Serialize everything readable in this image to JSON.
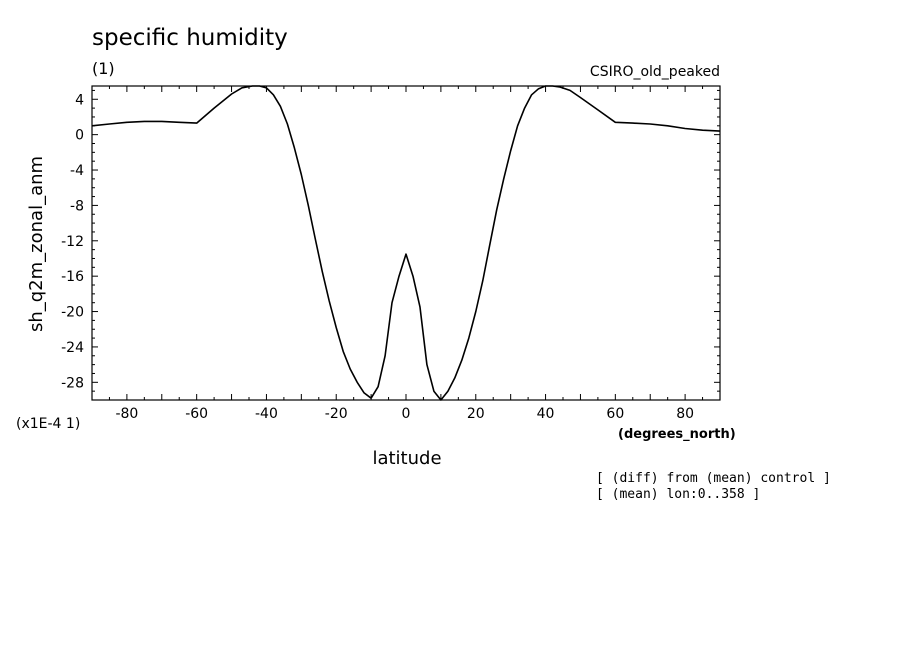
{
  "chart_data": {
    "type": "line",
    "title": "specific humidity",
    "subtitle": "(1)",
    "source_label": "CSIRO_old_peaked",
    "xlabel": "latitude",
    "x_units": "(degrees_north)",
    "ylabel": "sh_q2m_zonal_anm",
    "y_scale_label": "(x1E-4 1)",
    "xlim": [
      -90,
      90
    ],
    "ylim": [
      -30,
      5.5
    ],
    "x_ticks": [
      -80,
      -60,
      -40,
      -20,
      0,
      20,
      40,
      60,
      80
    ],
    "y_ticks": [
      4,
      0,
      -4,
      -8,
      -12,
      -16,
      -20,
      -24,
      -28
    ],
    "grid": false,
    "notes": [
      "[ (diff) from (mean) control ]",
      "[ (mean) lon:0..358 ]"
    ],
    "series": [
      {
        "x": [
          -90,
          -85,
          -80,
          -75,
          -70,
          -65,
          -60,
          -55,
          -50,
          -47,
          -44,
          -42,
          -40,
          -38,
          -36,
          -34,
          -32,
          -30,
          -28,
          -26,
          -24,
          -22,
          -20,
          -18,
          -16,
          -14,
          -12,
          -10,
          -8,
          -6,
          -4,
          -2,
          0,
          2,
          4,
          6,
          8,
          10,
          12,
          14,
          16,
          18,
          20,
          22,
          24,
          26,
          28,
          30,
          32,
          34,
          36,
          38,
          40,
          42,
          44,
          47,
          50,
          55,
          60,
          65,
          70,
          75,
          80,
          85,
          90
        ],
        "y": [
          1.0,
          1.2,
          1.4,
          1.5,
          1.5,
          1.4,
          1.3,
          3.0,
          4.6,
          5.3,
          5.5,
          5.5,
          5.3,
          4.5,
          3.2,
          1.2,
          -1.5,
          -4.5,
          -8.0,
          -11.8,
          -15.5,
          -18.8,
          -21.8,
          -24.5,
          -26.5,
          -28.0,
          -29.2,
          -29.8,
          -28.5,
          -25.0,
          -19.0,
          -16.0,
          -13.5,
          -16.0,
          -19.5,
          -26.0,
          -29.0,
          -30.0,
          -29.0,
          -27.5,
          -25.5,
          -23.0,
          -20.0,
          -16.5,
          -12.5,
          -8.5,
          -5.0,
          -1.8,
          1.0,
          3.0,
          4.5,
          5.2,
          5.5,
          5.5,
          5.4,
          5.0,
          4.2,
          2.8,
          1.4,
          1.3,
          1.2,
          1.0,
          0.7,
          0.5,
          0.4
        ]
      }
    ]
  }
}
